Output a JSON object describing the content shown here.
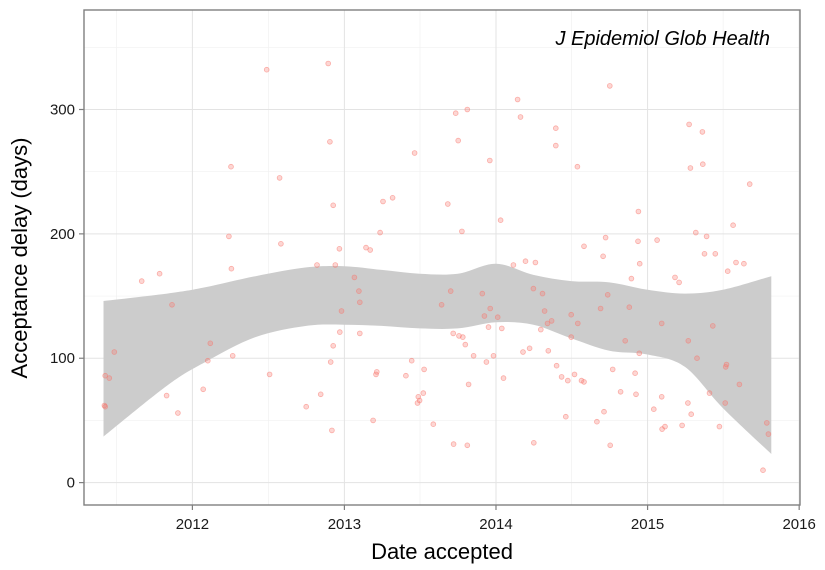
{
  "chart_data": {
    "type": "scatter",
    "xlabel": "Date accepted",
    "ylabel": "Acceptance delay (days)",
    "annotation": "J Epidemiol Glob Health",
    "x_ticks": [
      "2012",
      "2013",
      "2014",
      "2015",
      "2016"
    ],
    "y_ticks": [
      "0",
      "100",
      "200",
      "300"
    ],
    "xlim": [
      "2011-04-15",
      "2016-01-03"
    ],
    "ylim": [
      -18,
      380
    ],
    "point_color": "#f8766d",
    "band_color": "#cccccc",
    "grid": true,
    "points": [
      {
        "x": "2011-06-03",
        "y": 62
      },
      {
        "x": "2011-06-05",
        "y": 86
      },
      {
        "x": "2011-06-05",
        "y": 61
      },
      {
        "x": "2011-06-15",
        "y": 84
      },
      {
        "x": "2011-06-27",
        "y": 105
      },
      {
        "x": "2011-09-01",
        "y": 162
      },
      {
        "x": "2011-10-14",
        "y": 168
      },
      {
        "x": "2011-10-31",
        "y": 70
      },
      {
        "x": "2011-11-13",
        "y": 143
      },
      {
        "x": "2011-11-27",
        "y": 56
      },
      {
        "x": "2012-01-27",
        "y": 75
      },
      {
        "x": "2012-02-07",
        "y": 98
      },
      {
        "x": "2012-02-13",
        "y": 112
      },
      {
        "x": "2012-03-29",
        "y": 198
      },
      {
        "x": "2012-04-03",
        "y": 254
      },
      {
        "x": "2012-04-04",
        "y": 172
      },
      {
        "x": "2012-04-07",
        "y": 102
      },
      {
        "x": "2012-06-28",
        "y": 332
      },
      {
        "x": "2012-07-05",
        "y": 87
      },
      {
        "x": "2012-07-29",
        "y": 245
      },
      {
        "x": "2012-08-01",
        "y": 192
      },
      {
        "x": "2012-10-01",
        "y": 61
      },
      {
        "x": "2012-10-27",
        "y": 175
      },
      {
        "x": "2012-11-05",
        "y": 71
      },
      {
        "x": "2012-11-23",
        "y": 337
      },
      {
        "x": "2012-11-27",
        "y": 274
      },
      {
        "x": "2012-11-29",
        "y": 97
      },
      {
        "x": "2012-12-02",
        "y": 42
      },
      {
        "x": "2012-12-05",
        "y": 223
      },
      {
        "x": "2012-12-05",
        "y": 110
      },
      {
        "x": "2012-12-10",
        "y": 175
      },
      {
        "x": "2012-12-20",
        "y": 188
      },
      {
        "x": "2012-12-21",
        "y": 121
      },
      {
        "x": "2012-12-25",
        "y": 138
      },
      {
        "x": "2013-01-25",
        "y": 165
      },
      {
        "x": "2013-02-05",
        "y": 154
      },
      {
        "x": "2013-02-07",
        "y": 145
      },
      {
        "x": "2013-02-07",
        "y": 120
      },
      {
        "x": "2013-02-22",
        "y": 189
      },
      {
        "x": "2013-03-04",
        "y": 187
      },
      {
        "x": "2013-03-11",
        "y": 50
      },
      {
        "x": "2013-03-18",
        "y": 87
      },
      {
        "x": "2013-03-20",
        "y": 89
      },
      {
        "x": "2013-03-28",
        "y": 201
      },
      {
        "x": "2013-04-04",
        "y": 226
      },
      {
        "x": "2013-04-27",
        "y": 229
      },
      {
        "x": "2013-05-29",
        "y": 86
      },
      {
        "x": "2013-06-12",
        "y": 98
      },
      {
        "x": "2013-06-19",
        "y": 265
      },
      {
        "x": "2013-06-26",
        "y": 64
      },
      {
        "x": "2013-06-28",
        "y": 69
      },
      {
        "x": "2013-07-01",
        "y": 66
      },
      {
        "x": "2013-07-10",
        "y": 72
      },
      {
        "x": "2013-07-12",
        "y": 91
      },
      {
        "x": "2013-08-03",
        "y": 47
      },
      {
        "x": "2013-08-23",
        "y": 143
      },
      {
        "x": "2013-09-07",
        "y": 224
      },
      {
        "x": "2013-09-14",
        "y": 154
      },
      {
        "x": "2013-09-20",
        "y": 120
      },
      {
        "x": "2013-09-21",
        "y": 31
      },
      {
        "x": "2013-09-26",
        "y": 297
      },
      {
        "x": "2013-10-02",
        "y": 275
      },
      {
        "x": "2013-10-04",
        "y": 118
      },
      {
        "x": "2013-10-11",
        "y": 202
      },
      {
        "x": "2013-10-13",
        "y": 117
      },
      {
        "x": "2013-10-19",
        "y": 111
      },
      {
        "x": "2013-10-24",
        "y": 300
      },
      {
        "x": "2013-10-24",
        "y": 30
      },
      {
        "x": "2013-10-27",
        "y": 79
      },
      {
        "x": "2013-11-08",
        "y": 102
      },
      {
        "x": "2013-11-29",
        "y": 152
      },
      {
        "x": "2013-12-04",
        "y": 134
      },
      {
        "x": "2013-12-09",
        "y": 97
      },
      {
        "x": "2013-12-14",
        "y": 125
      },
      {
        "x": "2013-12-17",
        "y": 259
      },
      {
        "x": "2013-12-18",
        "y": 140
      },
      {
        "x": "2013-12-26",
        "y": 102
      },
      {
        "x": "2014-01-05",
        "y": 133
      },
      {
        "x": "2014-01-12",
        "y": 211
      },
      {
        "x": "2014-01-15",
        "y": 124
      },
      {
        "x": "2014-01-19",
        "y": 84
      },
      {
        "x": "2014-02-12",
        "y": 175
      },
      {
        "x": "2014-02-22",
        "y": 308
      },
      {
        "x": "2014-03-01",
        "y": 294
      },
      {
        "x": "2014-03-07",
        "y": 105
      },
      {
        "x": "2014-03-13",
        "y": 178
      },
      {
        "x": "2014-03-23",
        "y": 108
      },
      {
        "x": "2014-04-01",
        "y": 156
      },
      {
        "x": "2014-04-02",
        "y": 32
      },
      {
        "x": "2014-04-06",
        "y": 177
      },
      {
        "x": "2014-04-19",
        "y": 123
      },
      {
        "x": "2014-04-23",
        "y": 152
      },
      {
        "x": "2014-04-28",
        "y": 138
      },
      {
        "x": "2014-05-05",
        "y": 128
      },
      {
        "x": "2014-05-07",
        "y": 106
      },
      {
        "x": "2014-05-15",
        "y": 130
      },
      {
        "x": "2014-05-25",
        "y": 285
      },
      {
        "x": "2014-05-25",
        "y": 271
      },
      {
        "x": "2014-05-27",
        "y": 94
      },
      {
        "x": "2014-06-08",
        "y": 85
      },
      {
        "x": "2014-06-18",
        "y": 53
      },
      {
        "x": "2014-06-23",
        "y": 82
      },
      {
        "x": "2014-07-01",
        "y": 117
      },
      {
        "x": "2014-07-01",
        "y": 135
      },
      {
        "x": "2014-07-09",
        "y": 87
      },
      {
        "x": "2014-07-16",
        "y": 254
      },
      {
        "x": "2014-07-17",
        "y": 128
      },
      {
        "x": "2014-07-26",
        "y": 82
      },
      {
        "x": "2014-08-01",
        "y": 190
      },
      {
        "x": "2014-08-01",
        "y": 81
      },
      {
        "x": "2014-09-01",
        "y": 49
      },
      {
        "x": "2014-09-10",
        "y": 140
      },
      {
        "x": "2014-09-16",
        "y": 182
      },
      {
        "x": "2014-09-18",
        "y": 57
      },
      {
        "x": "2014-09-22",
        "y": 197
      },
      {
        "x": "2014-09-27",
        "y": 151
      },
      {
        "x": "2014-10-02",
        "y": 319
      },
      {
        "x": "2014-10-03",
        "y": 30
      },
      {
        "x": "2014-10-09",
        "y": 91
      },
      {
        "x": "2014-10-28",
        "y": 73
      },
      {
        "x": "2014-11-08",
        "y": 114
      },
      {
        "x": "2014-11-18",
        "y": 141
      },
      {
        "x": "2014-11-23",
        "y": 164
      },
      {
        "x": "2014-12-02",
        "y": 88
      },
      {
        "x": "2014-12-04",
        "y": 71
      },
      {
        "x": "2014-12-09",
        "y": 194
      },
      {
        "x": "2014-12-10",
        "y": 218
      },
      {
        "x": "2014-12-12",
        "y": 104
      },
      {
        "x": "2014-12-13",
        "y": 176
      },
      {
        "x": "2015-01-16",
        "y": 59
      },
      {
        "x": "2015-01-24",
        "y": 195
      },
      {
        "x": "2015-02-04",
        "y": 128
      },
      {
        "x": "2015-02-04",
        "y": 69
      },
      {
        "x": "2015-02-05",
        "y": 43
      },
      {
        "x": "2015-02-12",
        "y": 45
      },
      {
        "x": "2015-03-08",
        "y": 165
      },
      {
        "x": "2015-03-18",
        "y": 161
      },
      {
        "x": "2015-03-25",
        "y": 46
      },
      {
        "x": "2015-04-08",
        "y": 64
      },
      {
        "x": "2015-04-09",
        "y": 114
      },
      {
        "x": "2015-04-11",
        "y": 288
      },
      {
        "x": "2015-04-14",
        "y": 253
      },
      {
        "x": "2015-04-16",
        "y": 55
      },
      {
        "x": "2015-04-27",
        "y": 201
      },
      {
        "x": "2015-04-30",
        "y": 100
      },
      {
        "x": "2015-05-13",
        "y": 282
      },
      {
        "x": "2015-05-14",
        "y": 256
      },
      {
        "x": "2015-05-18",
        "y": 184
      },
      {
        "x": "2015-05-23",
        "y": 198
      },
      {
        "x": "2015-05-30",
        "y": 72
      },
      {
        "x": "2015-06-07",
        "y": 126
      },
      {
        "x": "2015-06-13",
        "y": 184
      },
      {
        "x": "2015-06-23",
        "y": 45
      },
      {
        "x": "2015-07-07",
        "y": 64
      },
      {
        "x": "2015-07-08",
        "y": 93
      },
      {
        "x": "2015-07-10",
        "y": 95
      },
      {
        "x": "2015-07-13",
        "y": 170
      },
      {
        "x": "2015-07-26",
        "y": 207
      },
      {
        "x": "2015-08-02",
        "y": 177
      },
      {
        "x": "2015-08-10",
        "y": 79
      },
      {
        "x": "2015-08-21",
        "y": 176
      },
      {
        "x": "2015-09-04",
        "y": 240
      },
      {
        "x": "2015-10-06",
        "y": 10
      },
      {
        "x": "2015-10-15",
        "y": 48
      },
      {
        "x": "2015-10-19",
        "y": 39
      }
    ],
    "band": {
      "x": [
        "2011-06-01",
        "2011-11-01",
        "2012-02-01",
        "2012-06-01",
        "2012-10-01",
        "2013-01-01",
        "2013-04-01",
        "2013-07-01",
        "2013-10-01",
        "2014-01-01",
        "2014-04-01",
        "2014-07-01",
        "2014-10-01",
        "2015-01-01",
        "2015-04-01",
        "2015-07-01",
        "2015-10-26"
      ],
      "upper": [
        146,
        152,
        157,
        166,
        173,
        174,
        171,
        168,
        168,
        176,
        167,
        162,
        161,
        155,
        152,
        155,
        166
      ],
      "lower": [
        37,
        78,
        97,
        117,
        126,
        127,
        126,
        124,
        124,
        129,
        127,
        116,
        106,
        103,
        93,
        60,
        23
      ]
    }
  }
}
